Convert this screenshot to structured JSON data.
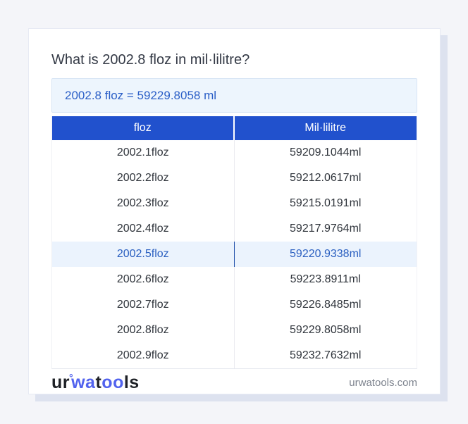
{
  "page": {
    "title": "What is 2002.8 floz in mil·lilitre?",
    "result": "2002.8 floz = 59229.8058 ml"
  },
  "table": {
    "columns": [
      "floz",
      "Mil·lilitre"
    ],
    "rows": [
      {
        "floz": "2002.1floz",
        "ml": "59209.1044ml",
        "highlight": false
      },
      {
        "floz": "2002.2floz",
        "ml": "59212.0617ml",
        "highlight": false
      },
      {
        "floz": "2002.3floz",
        "ml": "59215.0191ml",
        "highlight": false
      },
      {
        "floz": "2002.4floz",
        "ml": "59217.9764ml",
        "highlight": false
      },
      {
        "floz": "2002.5floz",
        "ml": "59220.9338ml",
        "highlight": true
      },
      {
        "floz": "2002.6floz",
        "ml": "59223.8911ml",
        "highlight": false
      },
      {
        "floz": "2002.7floz",
        "ml": "59226.8485ml",
        "highlight": false
      },
      {
        "floz": "2002.8floz",
        "ml": "59229.8058ml",
        "highlight": false
      },
      {
        "floz": "2002.9floz",
        "ml": "59232.7632ml",
        "highlight": false
      }
    ]
  },
  "footer": {
    "logo": {
      "part1": "ur",
      "ring": "°",
      "part2": "wa",
      "part3": "t",
      "part4": "oo",
      "part5": "ls"
    },
    "site": "urwatools.com"
  },
  "colors": {
    "page_background": "#f4f5f9",
    "card_shadow": "#dde2ef",
    "header_blue": "#2151cd",
    "highlight_row_bg": "#ebf3fd",
    "highlight_text": "#2a5fc0",
    "result_box_bg": "#edf5fd",
    "result_box_border": "#d7e5f5",
    "result_text": "#2b5fc7",
    "logo_blue": "#5263ee",
    "title_text": "#343a46"
  }
}
